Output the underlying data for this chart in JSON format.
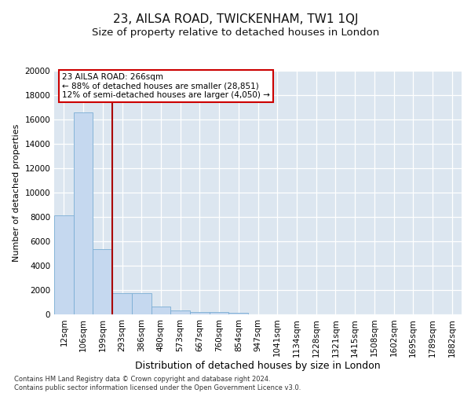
{
  "title": "23, AILSA ROAD, TWICKENHAM, TW1 1QJ",
  "subtitle": "Size of property relative to detached houses in London",
  "xlabel": "Distribution of detached houses by size in London",
  "ylabel": "Number of detached properties",
  "categories": [
    "12sqm",
    "106sqm",
    "199sqm",
    "293sqm",
    "386sqm",
    "480sqm",
    "573sqm",
    "667sqm",
    "760sqm",
    "854sqm",
    "947sqm",
    "1041sqm",
    "1134sqm",
    "1228sqm",
    "1321sqm",
    "1415sqm",
    "1508sqm",
    "1602sqm",
    "1695sqm",
    "1789sqm",
    "1882sqm"
  ],
  "values": [
    8100,
    16600,
    5350,
    1750,
    1750,
    620,
    330,
    220,
    175,
    150,
    0,
    0,
    0,
    0,
    0,
    0,
    0,
    0,
    0,
    0,
    0
  ],
  "bar_color": "#c5d8ef",
  "bar_edgecolor": "#7aadd4",
  "vline_x_idx": 2,
  "vline_color": "#aa0000",
  "ylim": [
    0,
    20000
  ],
  "yticks": [
    0,
    2000,
    4000,
    6000,
    8000,
    10000,
    12000,
    14000,
    16000,
    18000,
    20000
  ],
  "background_color": "#dce6f0",
  "grid_color": "#ffffff",
  "annotation_text": "23 AILSA ROAD: 266sqm\n← 88% of detached houses are smaller (28,851)\n12% of semi-detached houses are larger (4,050) →",
  "annotation_box_color": "#cc0000",
  "footer_text": "Contains HM Land Registry data © Crown copyright and database right 2024.\nContains public sector information licensed under the Open Government Licence v3.0.",
  "title_fontsize": 11,
  "subtitle_fontsize": 9.5,
  "xlabel_fontsize": 9,
  "ylabel_fontsize": 8,
  "tick_fontsize": 7.5,
  "annotation_fontsize": 7.5,
  "footer_fontsize": 6
}
